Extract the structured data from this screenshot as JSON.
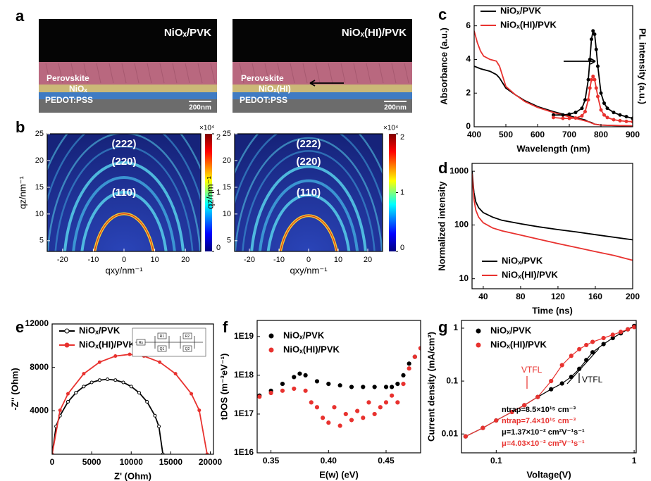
{
  "figure": {
    "label": "a",
    "sem": [
      {
        "title": "NiOₓ/PVK",
        "layers": [
          "Perovskite",
          "NiOₓ",
          "PEDOT:PSS"
        ],
        "scale": "200nm"
      },
      {
        "title": "NiOₓ(HI)/PVK",
        "layers": [
          "Perovskite",
          "NiOₓ(HI)",
          "PEDOT:PSS"
        ],
        "scale": "200nm"
      }
    ]
  },
  "chart_data": [
    {
      "type": "image",
      "label": "b",
      "xlabel": "qxy/nm⁻¹",
      "ylabel": "qz/nm⁻¹",
      "xlim": [
        -25,
        25
      ],
      "ylim": [
        3,
        25
      ],
      "xticks": [
        -20,
        -10,
        0,
        10,
        20
      ],
      "yticks": [
        5,
        10,
        15,
        20,
        25
      ],
      "clim": [
        0,
        2
      ],
      "cticks": [
        0,
        1,
        2
      ],
      "cunit": "×10⁴",
      "peaks": [
        "(222)",
        "(220)",
        "(110)"
      ]
    },
    {
      "type": "image",
      "xlabel": "qxy/nm⁻¹",
      "ylabel": "qz/nm⁻¹",
      "xlim": [
        -25,
        25
      ],
      "ylim": [
        3,
        25
      ],
      "xticks": [
        -20,
        -10,
        0,
        10,
        20
      ],
      "yticks": [
        5,
        10,
        15,
        20,
        25
      ],
      "clim": [
        0,
        2
      ],
      "cticks": [
        0,
        1,
        2
      ],
      "cunit": "×10⁴",
      "peaks": [
        "(222)",
        "(220)",
        "(110)"
      ]
    },
    {
      "type": "line",
      "label": "c",
      "xlabel": "Wavelength (nm)",
      "ylabel": "Absorbance (a.u.)",
      "y2label": "PL intensity (a.u.)",
      "xlim": [
        400,
        900
      ],
      "ylim": [
        0,
        7.2
      ],
      "xticks": [
        400,
        500,
        600,
        700,
        800,
        900
      ],
      "yticks": [
        0,
        2,
        4,
        6
      ],
      "series": [
        {
          "name": "NiOₓ/PVK",
          "color": "#000000",
          "x": [
            400,
            420,
            450,
            470,
            480,
            500,
            530,
            560,
            600,
            650,
            700,
            730,
            750,
            760,
            770,
            780,
            800,
            850,
            900
          ],
          "values": [
            3.6,
            3.45,
            3.3,
            3.1,
            2.9,
            2.3,
            1.9,
            1.55,
            1.2,
            0.9,
            0.65,
            0.5,
            0.4,
            0.3,
            0.25,
            0.15,
            0.1,
            0.07,
            0.05
          ]
        },
        {
          "name": "NiOₓ(HI)/PVK",
          "color": "#e8322f",
          "x": [
            400,
            410,
            420,
            430,
            450,
            470,
            480,
            500,
            530,
            560,
            600,
            650,
            700,
            730,
            750,
            760,
            770,
            780,
            800,
            850,
            900
          ],
          "values": [
            5.7,
            5.0,
            4.5,
            4.2,
            4.0,
            3.9,
            3.6,
            2.4,
            1.9,
            1.5,
            1.15,
            0.85,
            0.6,
            0.45,
            0.35,
            0.3,
            0.22,
            0.15,
            0.1,
            0.07,
            0.05
          ]
        },
        {
          "color": "#000000",
          "markers": true,
          "x": [
            650,
            680,
            700,
            720,
            740,
            750,
            760,
            765,
            770,
            775,
            780,
            785,
            790,
            800,
            810,
            820,
            840,
            860,
            880,
            900
          ],
          "values": [
            0.7,
            0.7,
            0.75,
            0.85,
            1.1,
            1.6,
            2.8,
            4.0,
            5.2,
            5.7,
            5.5,
            4.6,
            3.6,
            2.0,
            1.4,
            1.1,
            0.85,
            0.7,
            0.6,
            0.5
          ]
        },
        {
          "color": "#e8322f",
          "markers": true,
          "x": [
            650,
            680,
            700,
            720,
            740,
            750,
            760,
            765,
            770,
            775,
            780,
            785,
            790,
            800,
            810,
            820,
            840,
            860,
            880,
            900
          ],
          "values": [
            0.55,
            0.5,
            0.5,
            0.52,
            0.65,
            0.9,
            1.6,
            2.3,
            2.8,
            3.0,
            2.8,
            2.3,
            1.8,
            1.0,
            0.7,
            0.55,
            0.42,
            0.36,
            0.32,
            0.3
          ]
        }
      ]
    },
    {
      "type": "line",
      "label": "d",
      "xlabel": "Time (ns)",
      "ylabel": "Normalized intensity",
      "ylog": true,
      "xlim": [
        28,
        200
      ],
      "ylim": [
        6.5,
        1400
      ],
      "xticks": [
        40,
        80,
        120,
        160,
        200
      ],
      "yticks": [
        10,
        100,
        1000
      ],
      "series": [
        {
          "name": "NiOₓ/PVK",
          "color": "#000000",
          "x": [
            28,
            30,
            32,
            35,
            40,
            50,
            60,
            80,
            100,
            120,
            140,
            160,
            180,
            200
          ],
          "values": [
            1000,
            400,
            270,
            210,
            170,
            140,
            122,
            105,
            92,
            82,
            74,
            66,
            59,
            53
          ]
        },
        {
          "name": "NiOₓ(HI)/PVK",
          "color": "#e8322f",
          "x": [
            28,
            30,
            32,
            35,
            40,
            50,
            60,
            80,
            100,
            120,
            140,
            160,
            180,
            200
          ],
          "values": [
            900,
            300,
            190,
            140,
            110,
            88,
            78,
            65,
            54,
            45,
            38,
            32,
            27,
            22
          ]
        }
      ]
    },
    {
      "type": "line",
      "label": "e",
      "xlabel": "Z' (Ohm)",
      "ylabel": "-Z'' (Ohm)",
      "xlim": [
        0,
        20400
      ],
      "ylim": [
        0,
        12000
      ],
      "xticks": [
        0,
        5000,
        10000,
        15000,
        20000
      ],
      "yticks": [
        4000,
        8000,
        12000
      ],
      "circuit": [
        "Rs",
        "R1",
        "Q1",
        "R2",
        "Q2"
      ],
      "series": [
        {
          "name": "NiOₓ/PVK",
          "color": "#000000",
          "markers": true,
          "x": [
            0,
            500,
            1000,
            2000,
            3000,
            4000,
            5000,
            6000,
            7000,
            8000,
            9000,
            10000,
            11000,
            12000,
            13000,
            13500,
            14000
          ],
          "values": [
            0,
            2562,
            3555,
            4830,
            5664,
            6236,
            6614,
            6831,
            6900,
            6831,
            6614,
            6236,
            5664,
            4830,
            3555,
            2562,
            0
          ]
        },
        {
          "name": "NiOₓ(HI)/PVK",
          "color": "#e8322f",
          "markers": true,
          "x": [
            0,
            1000,
            2000,
            4000,
            6000,
            8000,
            9800,
            11600,
            13600,
            15600,
            17600,
            18600,
            19600
          ],
          "values": [
            0,
            4050,
            5571,
            7417,
            8482,
            9045,
            9200,
            9045,
            8482,
            7417,
            5571,
            4050,
            0
          ]
        }
      ]
    },
    {
      "type": "scatter",
      "label": "f",
      "xlabel": "E(w) (eV)",
      "ylabel": "tDOS (m⁻³eV⁻¹)",
      "ylog": true,
      "xlim": [
        0.338,
        0.48
      ],
      "ylim": [
        1e+16,
        2.6e+19
      ],
      "xticks": [
        0.35,
        {
          "value": 0.4,
          "label": "0.40"
        },
        0.45
      ],
      "yticks": [
        {
          "value": 1e+16,
          "label": "1E16"
        },
        {
          "value": 1e+17,
          "label": "1E17"
        },
        {
          "value": 1e+18,
          "label": "1E18"
        },
        {
          "value": 1e+19,
          "label": "1E19"
        }
      ],
      "series": [
        {
          "name": "NiOₓ/PVK",
          "color": "#000000",
          "x": [
            0.34,
            0.35,
            0.36,
            0.37,
            0.375,
            0.38,
            0.39,
            0.4,
            0.41,
            0.42,
            0.43,
            0.44,
            0.45,
            0.455,
            0.46,
            0.465,
            0.47,
            0.475,
            0.48
          ],
          "values": [
            3e+17,
            4e+17,
            6e+17,
            9e+17,
            1.1e+18,
            1e+18,
            7e+17,
            6e+17,
            5.5e+17,
            5e+17,
            5e+17,
            5e+17,
            5e+17,
            5e+17,
            6e+17,
            1e+18,
            2e+18,
            3e+18,
            5e+18
          ]
        },
        {
          "name": "NiOₓ(HI)/PVK",
          "color": "#e8322f",
          "x": [
            0.34,
            0.35,
            0.36,
            0.37,
            0.38,
            0.385,
            0.39,
            0.395,
            0.4,
            0.405,
            0.41,
            0.415,
            0.42,
            0.425,
            0.43,
            0.435,
            0.44,
            0.445,
            0.45,
            0.455,
            0.46,
            0.465,
            0.47,
            0.475,
            0.48
          ],
          "values": [
            2.8e+17,
            3.5e+17,
            4e+17,
            4.5e+17,
            4e+17,
            2e+17,
            1.5e+17,
            8e+16,
            6e+16,
            1.5e+17,
            5e+16,
            1e+17,
            7e+16,
            1.2e+17,
            8e+16,
            2e+17,
            1e+17,
            1.5e+17,
            2e+17,
            3e+17,
            2e+17,
            6e+17,
            1.5e+18,
            3e+18,
            5e+18
          ]
        }
      ]
    },
    {
      "type": "scatter",
      "label": "g",
      "xlabel": "Voltage(V)",
      "ylabel": "Current density (mA/cm²)",
      "xlog": true,
      "ylog": true,
      "xlim": [
        0.056,
        1.035
      ],
      "ylim": [
        0.0044,
        1.4
      ],
      "xticks": [
        0.1,
        1
      ],
      "yticks": [
        0.01,
        0.1,
        1
      ],
      "annotations": [
        {
          "text": "VTFL",
          "color": "#e8322f"
        },
        {
          "text": "VTFL",
          "color": "#000000"
        },
        {
          "text": "ntrap=8.5×10¹⁵ cm⁻³",
          "color": "#000000"
        },
        {
          "text": "ntrap=7.4×10¹⁵ cm⁻³",
          "color": "#e8322f"
        },
        {
          "text": "μ=1.37×10⁻² cm²V⁻¹s⁻¹",
          "color": "#000000"
        },
        {
          "text": "μ=4.03×10⁻² cm²V⁻¹s⁻¹",
          "color": "#e8322f"
        }
      ],
      "series": [
        {
          "name": "NiOₓ/PVK",
          "color": "#000000",
          "line": true,
          "x": [
            0.06,
            0.08,
            0.1,
            0.13,
            0.16,
            0.2,
            0.25,
            0.3,
            0.35,
            0.4,
            0.45,
            0.5,
            0.6,
            0.7,
            0.8,
            0.9,
            1
          ],
          "values": [
            0.009,
            0.013,
            0.018,
            0.026,
            0.035,
            0.05,
            0.07,
            0.09,
            0.12,
            0.17,
            0.25,
            0.35,
            0.5,
            0.65,
            0.8,
            0.95,
            1.1
          ]
        },
        {
          "name": "NiOₓ(HI)/PVK",
          "color": "#e8322f",
          "line": true,
          "x": [
            0.06,
            0.08,
            0.1,
            0.13,
            0.16,
            0.2,
            0.25,
            0.3,
            0.35,
            0.4,
            0.45,
            0.5,
            0.6,
            0.7,
            0.8,
            0.9,
            1
          ],
          "values": [
            0.009,
            0.013,
            0.018,
            0.026,
            0.035,
            0.05,
            0.1,
            0.2,
            0.3,
            0.4,
            0.48,
            0.55,
            0.65,
            0.75,
            0.85,
            0.95,
            1.05
          ]
        }
      ]
    }
  ]
}
